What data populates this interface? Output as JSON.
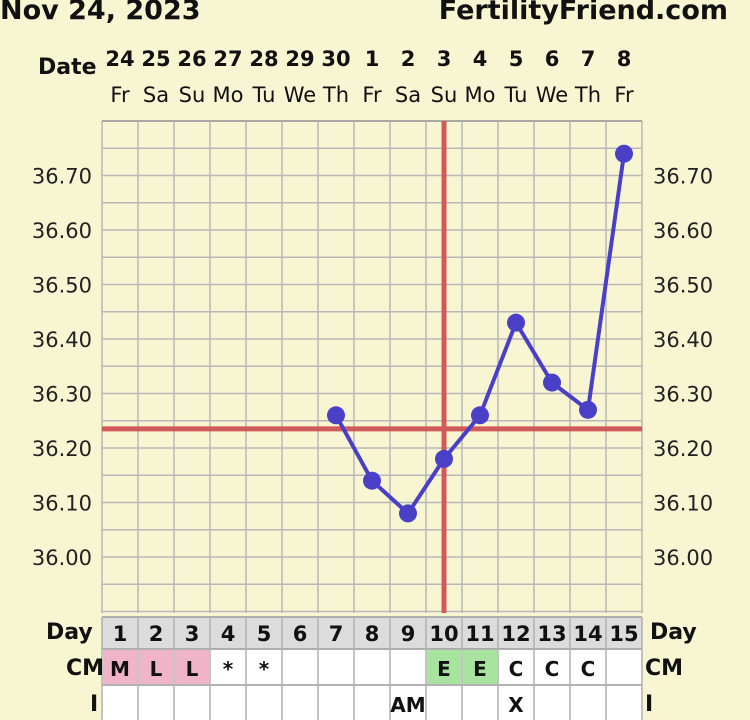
{
  "header": {
    "date": "Nov 24, 2023",
    "site": "FertilityFriend.com"
  },
  "labels": {
    "date": "Date",
    "day_left": "Day",
    "day_right": "Day",
    "cm_left": "CM",
    "cm_right": "CM",
    "i_left": "I",
    "i_right": "I"
  },
  "columns": {
    "dates": [
      "24",
      "25",
      "26",
      "27",
      "28",
      "29",
      "30",
      "1",
      "2",
      "3",
      "4",
      "5",
      "6",
      "7",
      "8"
    ],
    "weekdays": [
      "Fr",
      "Sa",
      "Su",
      "Mo",
      "Tu",
      "We",
      "Th",
      "Fr",
      "Sa",
      "Su",
      "Mo",
      "Tu",
      "We",
      "Th",
      "Fr"
    ],
    "cycle_days": [
      "1",
      "2",
      "3",
      "4",
      "5",
      "6",
      "7",
      "8",
      "9",
      "10",
      "11",
      "12",
      "13",
      "14",
      "15"
    ],
    "cm": [
      "M",
      "L",
      "L",
      "*",
      "*",
      "",
      "",
      "",
      "",
      "E",
      "E",
      "C",
      "C",
      "C",
      ""
    ],
    "intercourse": [
      "",
      "",
      "",
      "",
      "",
      "",
      "",
      "",
      "AM",
      "",
      "",
      "X",
      "",
      "",
      ""
    ]
  },
  "colors": {
    "background": "#f8f5d3",
    "line": "#4a40c8",
    "coverline": "#d05a5a",
    "cm_menstrual": "#f0b4c8",
    "cm_eggwhite": "#a8e4a0",
    "grid": "#b8b8b8"
  },
  "chart_data": {
    "type": "line",
    "ylim": [
      35.93,
      36.78
    ],
    "ytick_labels": [
      "36.00",
      "36.10",
      "36.20",
      "36.30",
      "36.40",
      "36.50",
      "36.60",
      "36.70"
    ],
    "series": [
      {
        "days": [
          7,
          8,
          9,
          10,
          11,
          12,
          13,
          14,
          15
        ],
        "values": [
          36.26,
          36.14,
          36.08,
          36.18,
          36.26,
          36.43,
          36.32,
          36.27,
          36.74
        ]
      }
    ],
    "coverline": 36.235,
    "ovulation_day": 10,
    "grid": true
  }
}
